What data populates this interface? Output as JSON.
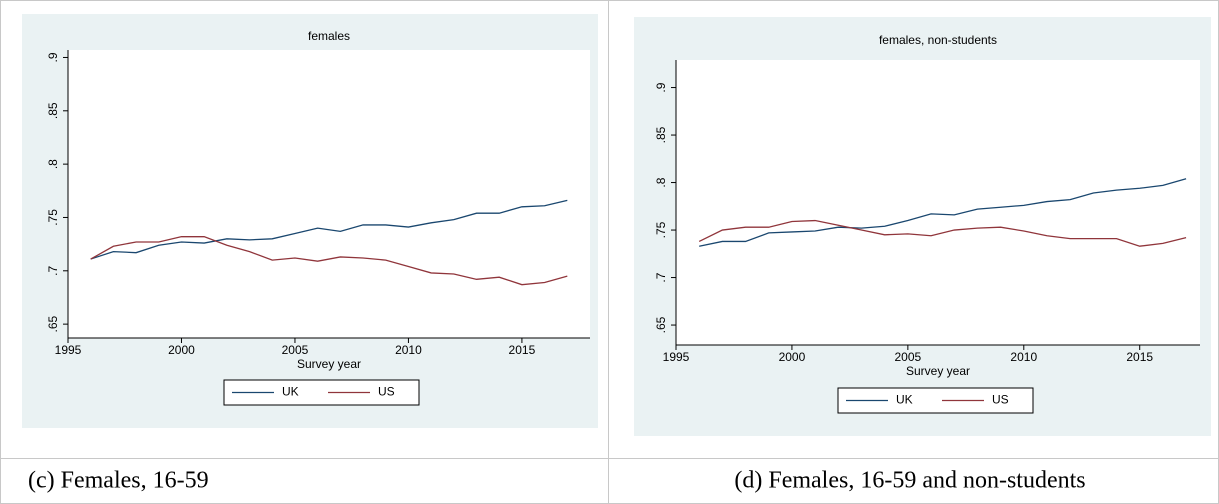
{
  "chart_data": [
    {
      "type": "line",
      "title": "females",
      "x_label": "Survey year",
      "x": [
        1996,
        1997,
        1998,
        1999,
        2000,
        2001,
        2002,
        2003,
        2004,
        2005,
        2006,
        2007,
        2008,
        2009,
        2010,
        2011,
        2012,
        2013,
        2014,
        2015,
        2016,
        2017
      ],
      "series": [
        {
          "name": "UK",
          "color": "#1a476f",
          "values": [
            0.711,
            0.718,
            0.717,
            0.724,
            0.727,
            0.726,
            0.73,
            0.729,
            0.73,
            0.735,
            0.74,
            0.737,
            0.743,
            0.743,
            0.741,
            0.745,
            0.748,
            0.754,
            0.754,
            0.76,
            0.761,
            0.766
          ]
        },
        {
          "name": "US",
          "color": "#90353b",
          "values": [
            0.711,
            0.723,
            0.727,
            0.727,
            0.732,
            0.732,
            0.724,
            0.718,
            0.71,
            0.712,
            0.709,
            0.713,
            0.712,
            0.71,
            0.704,
            0.698,
            0.697,
            0.692,
            0.694,
            0.687,
            0.689,
            0.695
          ]
        }
      ],
      "xlim": [
        1995,
        2018
      ],
      "xticks": [
        1995,
        2000,
        2005,
        2010,
        2015
      ],
      "ylim": [
        0.637,
        0.907
      ],
      "yticks": [
        {
          "value": 0.65,
          "label": ".65"
        },
        {
          "value": 0.7,
          "label": ".7"
        },
        {
          "value": 0.75,
          "label": ".75"
        },
        {
          "value": 0.8,
          "label": ".8"
        },
        {
          "value": 0.85,
          "label": ".85"
        },
        {
          "value": 0.9,
          "label": ".9"
        }
      ]
    },
    {
      "type": "line",
      "title": "females, non-students",
      "x_label": "Survey year",
      "x": [
        1996,
        1997,
        1998,
        1999,
        2000,
        2001,
        2002,
        2003,
        2004,
        2005,
        2006,
        2007,
        2008,
        2009,
        2010,
        2011,
        2012,
        2013,
        2014,
        2015,
        2016,
        2017
      ],
      "series": [
        {
          "name": "UK",
          "color": "#1a476f",
          "values": [
            0.733,
            0.738,
            0.738,
            0.747,
            0.748,
            0.749,
            0.753,
            0.752,
            0.754,
            0.76,
            0.767,
            0.766,
            0.772,
            0.774,
            0.776,
            0.78,
            0.782,
            0.789,
            0.792,
            0.794,
            0.797,
            0.804
          ]
        },
        {
          "name": "US",
          "color": "#90353b",
          "values": [
            0.738,
            0.75,
            0.753,
            0.753,
            0.759,
            0.76,
            0.755,
            0.75,
            0.745,
            0.746,
            0.744,
            0.75,
            0.752,
            0.753,
            0.749,
            0.744,
            0.741,
            0.741,
            0.741,
            0.733,
            0.736,
            0.742
          ]
        }
      ],
      "xlim": [
        1995,
        2017.6
      ],
      "xticks": [
        1995,
        2000,
        2005,
        2010,
        2015
      ],
      "ylim": [
        0.629,
        0.929
      ],
      "yticks": [
        {
          "value": 0.65,
          "label": ".65"
        },
        {
          "value": 0.7,
          "label": ".7"
        },
        {
          "value": 0.75,
          "label": ".75"
        },
        {
          "value": 0.8,
          "label": ".8"
        },
        {
          "value": 0.85,
          "label": ".85"
        },
        {
          "value": 0.9,
          "label": ".9"
        }
      ]
    }
  ],
  "captions": [
    "(c) Females, 16-59",
    "(d) Females, 16-59 and  non-students"
  ]
}
